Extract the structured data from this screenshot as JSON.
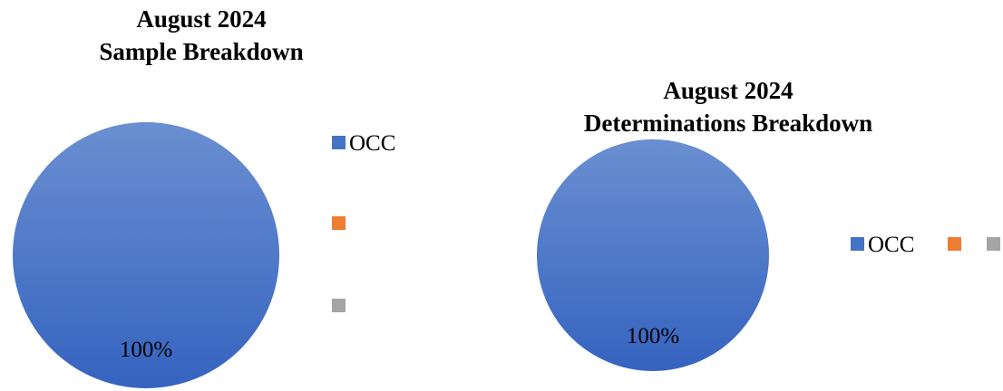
{
  "colors": {
    "series_1": "#4472C4",
    "series_2": "#ED7D31",
    "series_3": "#A5A5A5"
  },
  "chart_data": [
    {
      "type": "pie",
      "title": "August 2024 Sample Breakdown",
      "title_lines": [
        "August 2024",
        "Sample Breakdown"
      ],
      "categories": [
        "OCC",
        "",
        ""
      ],
      "values": [
        100,
        0,
        0
      ],
      "data_labels": [
        "100%"
      ],
      "legend": "right",
      "legend_orientation": "vertical"
    },
    {
      "type": "pie",
      "title": "August 2024 Determinations Breakdown",
      "title_lines": [
        "August 2024",
        "Determinations Breakdown"
      ],
      "categories": [
        "OCC",
        "",
        ""
      ],
      "values": [
        100,
        0,
        0
      ],
      "data_labels": [
        "100%"
      ],
      "legend": "right",
      "legend_orientation": "horizontal"
    }
  ]
}
